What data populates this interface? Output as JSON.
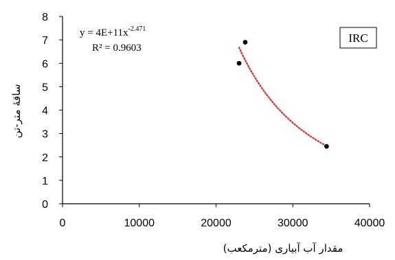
{
  "chart_data": {
    "type": "scatter",
    "x": [
      23000,
      23800,
      34400
    ],
    "y": [
      6.0,
      6.9,
      2.45
    ],
    "xlim": [
      0,
      40000
    ],
    "ylim": [
      0,
      8
    ],
    "xticks": [
      "0",
      "10000",
      "20000",
      "30000",
      "40000"
    ],
    "yticks": [
      "0",
      "1",
      "2",
      "3",
      "4",
      "5",
      "6",
      "7",
      "8"
    ],
    "xlabel": "مقدار آب آبیاری (مترمکعب)",
    "ylabel": "ساقۀ متر-تن",
    "trendline": {
      "type": "power",
      "coef": 400000000000.0,
      "exponent": -2.471,
      "style": "dotted",
      "color": "#e8232a",
      "equation_base": "y = 4E+11x",
      "equation_exp": "-2.471",
      "r2_text": "R² = 0.9603"
    },
    "annotation": "IRC",
    "grid": false,
    "legend": "none",
    "marker_color": "#000000"
  }
}
